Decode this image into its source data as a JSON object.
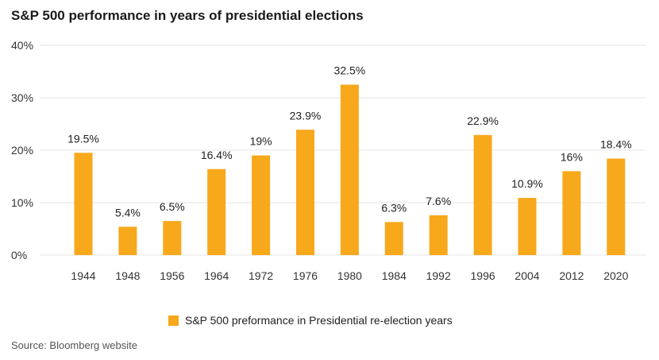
{
  "title": "S&P 500 performance in years of presidential elections",
  "source": "Source: Bloomberg website",
  "colors": {
    "bar": "#F7A81B",
    "grid": "#e6e6e6"
  },
  "chart_data": {
    "type": "bar",
    "categories": [
      "1944",
      "1948",
      "1956",
      "1964",
      "1972",
      "1976",
      "1980",
      "1984",
      "1992",
      "1996",
      "2004",
      "2012",
      "2020"
    ],
    "series": [
      {
        "name": "S&P 500 preformance in Presidential re-election years",
        "values": [
          19.5,
          5.4,
          6.5,
          16.4,
          19,
          23.9,
          32.5,
          6.3,
          7.6,
          22.9,
          10.9,
          16,
          18.4
        ],
        "labels": [
          "19.5%",
          "5.4%",
          "6.5%",
          "16.4%",
          "19%",
          "23.9%",
          "32.5%",
          "6.3%",
          "7.6%",
          "22.9%",
          "10.9%",
          "16%",
          "18.4%"
        ]
      }
    ],
    "yticks": [
      0,
      10,
      20,
      30,
      40
    ],
    "ytick_labels": [
      "0%",
      "10%",
      "20%",
      "30%",
      "40%"
    ],
    "ylim": [
      0,
      40
    ],
    "grid": true,
    "legend_position": "bottom-center"
  }
}
